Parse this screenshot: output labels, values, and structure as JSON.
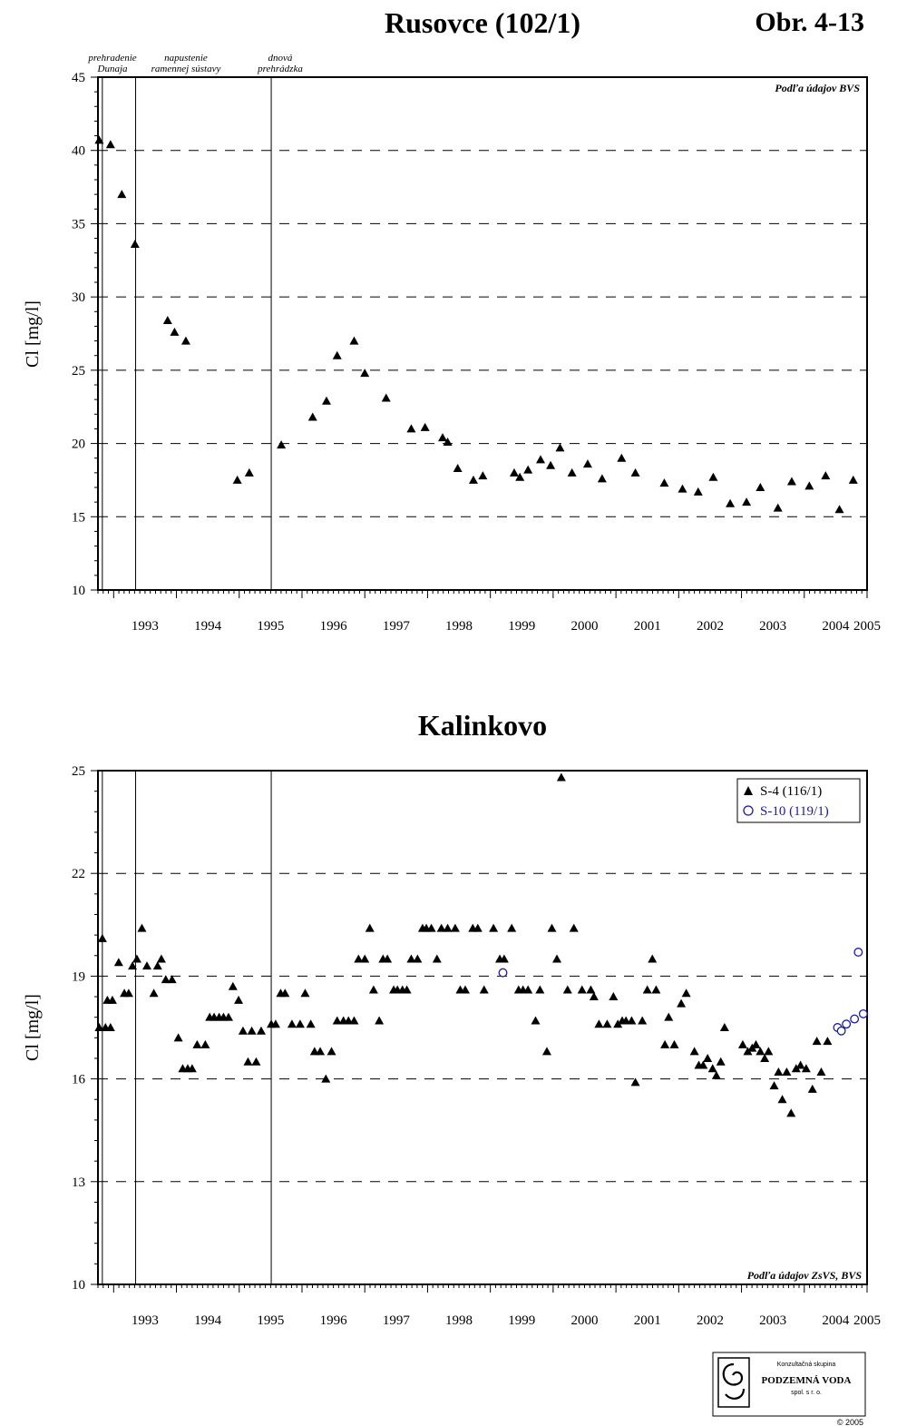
{
  "figure_label": "Obr. 4-13",
  "copyright": "© 2005",
  "logo": {
    "line1": "Konzultačná skupina",
    "line2": "PODZEMNÁ VODA",
    "line3": "spol. s r. o."
  },
  "colors": {
    "s4": "#000000",
    "s10": "#1a1aa8"
  },
  "chart_data": [
    {
      "type": "scatter",
      "title": "Rusovce (102/1)",
      "ylabel": "Cl [mg/l]",
      "xlabel": "",
      "xlim": [
        1992.75,
        2005.0
      ],
      "ylim": [
        10,
        45
      ],
      "yticks": [
        10,
        15,
        20,
        25,
        30,
        35,
        40,
        45
      ],
      "xticks": [
        "1993",
        "1994",
        "1995",
        "1996",
        "1997",
        "1998",
        "1999",
        "2000",
        "2001",
        "2002",
        "2003",
        "2004",
        "2005"
      ],
      "grid": "dashed horizontal",
      "source_note": "Podľa údajov BVS",
      "events": [
        {
          "x": 1992.82,
          "label1": "prehradenie",
          "label2": "Dunaja"
        },
        {
          "x": 1993.35,
          "label1": "napustenie",
          "label2": "ramennej sústavy"
        },
        {
          "x": 1995.51,
          "label1": "dnová",
          "label2": "prehrádzka"
        }
      ],
      "series": [
        {
          "name": "",
          "marker": "triangle",
          "points": [
            [
              1992.77,
              40.7
            ],
            [
              1992.95,
              40.4
            ],
            [
              1993.13,
              37.0
            ],
            [
              1993.34,
              33.6
            ],
            [
              1993.86,
              28.4
            ],
            [
              1993.97,
              27.6
            ],
            [
              1994.15,
              27.0
            ],
            [
              1994.97,
              17.5
            ],
            [
              1995.16,
              18.0
            ],
            [
              1995.67,
              19.9
            ],
            [
              1996.17,
              21.8
            ],
            [
              1996.39,
              22.9
            ],
            [
              1996.56,
              26.0
            ],
            [
              1996.83,
              27.0
            ],
            [
              1997.0,
              24.8
            ],
            [
              1997.34,
              23.1
            ],
            [
              1997.74,
              21.0
            ],
            [
              1997.96,
              21.1
            ],
            [
              1998.24,
              20.4
            ],
            [
              1998.32,
              20.1
            ],
            [
              1998.48,
              18.3
            ],
            [
              1998.73,
              17.5
            ],
            [
              1998.88,
              17.8
            ],
            [
              1999.38,
              18.0
            ],
            [
              1999.47,
              17.7
            ],
            [
              1999.6,
              18.2
            ],
            [
              1999.8,
              18.9
            ],
            [
              1999.96,
              18.5
            ],
            [
              2000.11,
              19.7
            ],
            [
              2000.3,
              18.0
            ],
            [
              2000.55,
              18.6
            ],
            [
              2000.78,
              17.6
            ],
            [
              2001.09,
              19.0
            ],
            [
              2001.31,
              18.0
            ],
            [
              2001.77,
              17.3
            ],
            [
              2002.06,
              16.9
            ],
            [
              2002.31,
              16.7
            ],
            [
              2002.55,
              17.7
            ],
            [
              2002.82,
              15.9
            ],
            [
              2003.08,
              16.0
            ],
            [
              2003.3,
              17.0
            ],
            [
              2003.58,
              15.6
            ],
            [
              2003.8,
              17.4
            ],
            [
              2004.08,
              17.1
            ],
            [
              2004.34,
              17.8
            ],
            [
              2004.56,
              15.5
            ],
            [
              2004.78,
              17.5
            ]
          ]
        }
      ]
    },
    {
      "type": "scatter",
      "title": "Kalinkovo",
      "ylabel": "Cl [mg/l]",
      "xlabel": "",
      "xlim": [
        1992.75,
        2005.0
      ],
      "ylim": [
        10,
        25
      ],
      "yticks": [
        10,
        13,
        16,
        19,
        22,
        25
      ],
      "xticks": [
        "1993",
        "1994",
        "1995",
        "1996",
        "1997",
        "1998",
        "1999",
        "2000",
        "2001",
        "2002",
        "2003",
        "2004",
        "2005"
      ],
      "grid": "dashed horizontal",
      "source_note": "Podľa údajov ZsVS, BVS",
      "legend_position": "top-right",
      "events": [
        {
          "x": 1992.82
        },
        {
          "x": 1993.35
        },
        {
          "x": 1995.51
        }
      ],
      "series": [
        {
          "name": "S-4  (116/1)",
          "marker": "triangle",
          "points": [
            [
              1992.77,
              17.5
            ],
            [
              1992.82,
              20.1
            ],
            [
              1992.87,
              17.5
            ],
            [
              1992.9,
              18.3
            ],
            [
              1992.95,
              17.5
            ],
            [
              1992.98,
              18.3
            ],
            [
              1993.08,
              19.4
            ],
            [
              1993.17,
              18.5
            ],
            [
              1993.24,
              18.5
            ],
            [
              1993.3,
              19.3
            ],
            [
              1993.37,
              19.5
            ],
            [
              1993.45,
              20.4
            ],
            [
              1993.53,
              19.3
            ],
            [
              1993.64,
              18.5
            ],
            [
              1993.7,
              19.3
            ],
            [
              1993.76,
              19.5
            ],
            [
              1993.83,
              18.9
            ],
            [
              1993.93,
              18.9
            ],
            [
              1994.03,
              17.2
            ],
            [
              1994.1,
              16.3
            ],
            [
              1994.18,
              16.3
            ],
            [
              1994.25,
              16.3
            ],
            [
              1994.33,
              17.0
            ],
            [
              1994.46,
              17.0
            ],
            [
              1994.53,
              17.8
            ],
            [
              1994.6,
              17.8
            ],
            [
              1994.68,
              17.8
            ],
            [
              1994.75,
              17.8
            ],
            [
              1994.83,
              17.8
            ],
            [
              1994.9,
              18.7
            ],
            [
              1994.99,
              18.3
            ],
            [
              1995.06,
              17.4
            ],
            [
              1995.14,
              16.5
            ],
            [
              1995.2,
              17.4
            ],
            [
              1995.27,
              16.5
            ],
            [
              1995.35,
              17.4
            ],
            [
              1995.51,
              17.6
            ],
            [
              1995.58,
              17.6
            ],
            [
              1995.66,
              18.5
            ],
            [
              1995.73,
              18.5
            ],
            [
              1995.84,
              17.6
            ],
            [
              1995.97,
              17.6
            ],
            [
              1996.05,
              18.5
            ],
            [
              1996.14,
              17.6
            ],
            [
              1996.2,
              16.8
            ],
            [
              1996.29,
              16.8
            ],
            [
              1996.38,
              16.0
            ],
            [
              1996.47,
              16.8
            ],
            [
              1996.56,
              17.7
            ],
            [
              1996.66,
              17.7
            ],
            [
              1996.74,
              17.7
            ],
            [
              1996.83,
              17.7
            ],
            [
              1996.9,
              19.5
            ],
            [
              1997.0,
              19.5
            ],
            [
              1997.08,
              20.4
            ],
            [
              1997.14,
              18.6
            ],
            [
              1997.23,
              17.7
            ],
            [
              1997.29,
              19.5
            ],
            [
              1997.36,
              19.5
            ],
            [
              1997.46,
              18.6
            ],
            [
              1997.52,
              18.6
            ],
            [
              1997.6,
              18.6
            ],
            [
              1997.67,
              18.6
            ],
            [
              1997.74,
              19.5
            ],
            [
              1997.84,
              19.5
            ],
            [
              1997.92,
              20.4
            ],
            [
              1997.98,
              20.4
            ],
            [
              1998.06,
              20.4
            ],
            [
              1998.15,
              19.5
            ],
            [
              1998.22,
              20.4
            ],
            [
              1998.32,
              20.4
            ],
            [
              1998.44,
              20.4
            ],
            [
              1998.52,
              18.6
            ],
            [
              1998.6,
              18.6
            ],
            [
              1998.72,
              20.4
            ],
            [
              1998.8,
              20.4
            ],
            [
              1998.9,
              18.6
            ],
            [
              1999.05,
              20.4
            ],
            [
              1999.15,
              19.5
            ],
            [
              1999.22,
              19.5
            ],
            [
              1999.34,
              20.4
            ],
            [
              1999.45,
              18.6
            ],
            [
              1999.52,
              18.6
            ],
            [
              1999.6,
              18.6
            ],
            [
              1999.72,
              17.7
            ],
            [
              1999.79,
              18.6
            ],
            [
              1999.9,
              16.8
            ],
            [
              1999.98,
              20.4
            ],
            [
              2000.06,
              19.5
            ],
            [
              2000.13,
              24.8
            ],
            [
              2000.23,
              18.6
            ],
            [
              2000.33,
              20.4
            ],
            [
              2000.46,
              18.6
            ],
            [
              2000.6,
              18.6
            ],
            [
              2000.65,
              18.4
            ],
            [
              2000.73,
              17.6
            ],
            [
              2000.86,
              17.6
            ],
            [
              2000.96,
              18.4
            ],
            [
              2001.03,
              17.6
            ],
            [
              2001.1,
              17.7
            ],
            [
              2001.16,
              17.7
            ],
            [
              2001.25,
              17.7
            ],
            [
              2001.31,
              15.9
            ],
            [
              2001.42,
              17.7
            ],
            [
              2001.5,
              18.6
            ],
            [
              2001.58,
              19.5
            ],
            [
              2001.64,
              18.6
            ],
            [
              2001.78,
              17.0
            ],
            [
              2001.84,
              17.8
            ],
            [
              2001.93,
              17.0
            ],
            [
              2002.04,
              18.2
            ],
            [
              2002.12,
              18.5
            ],
            [
              2002.25,
              16.8
            ],
            [
              2002.32,
              16.4
            ],
            [
              2002.39,
              16.4
            ],
            [
              2002.46,
              16.6
            ],
            [
              2002.54,
              16.3
            ],
            [
              2002.6,
              16.1
            ],
            [
              2002.67,
              16.5
            ],
            [
              2002.73,
              17.5
            ],
            [
              2003.02,
              17.0
            ],
            [
              2003.1,
              16.8
            ],
            [
              2003.17,
              16.9
            ],
            [
              2003.23,
              17.0
            ],
            [
              2003.3,
              16.8
            ],
            [
              2003.37,
              16.6
            ],
            [
              2003.43,
              16.8
            ],
            [
              2003.52,
              15.8
            ],
            [
              2003.59,
              16.2
            ],
            [
              2003.65,
              15.4
            ],
            [
              2003.72,
              16.2
            ],
            [
              2003.79,
              15.0
            ],
            [
              2003.87,
              16.3
            ],
            [
              2003.94,
              16.4
            ],
            [
              2004.03,
              16.3
            ],
            [
              2004.13,
              15.7
            ],
            [
              2004.2,
              17.1
            ],
            [
              2004.27,
              16.2
            ],
            [
              2004.37,
              17.1
            ]
          ]
        },
        {
          "name": "S-10  (119/1)",
          "marker": "circle-open",
          "points": [
            [
              1999.2,
              19.1
            ],
            [
              2004.53,
              17.5
            ],
            [
              2004.59,
              17.4
            ],
            [
              2004.67,
              17.6
            ],
            [
              2004.8,
              17.75
            ],
            [
              2004.86,
              19.7
            ],
            [
              2004.94,
              17.9
            ]
          ]
        }
      ]
    }
  ]
}
